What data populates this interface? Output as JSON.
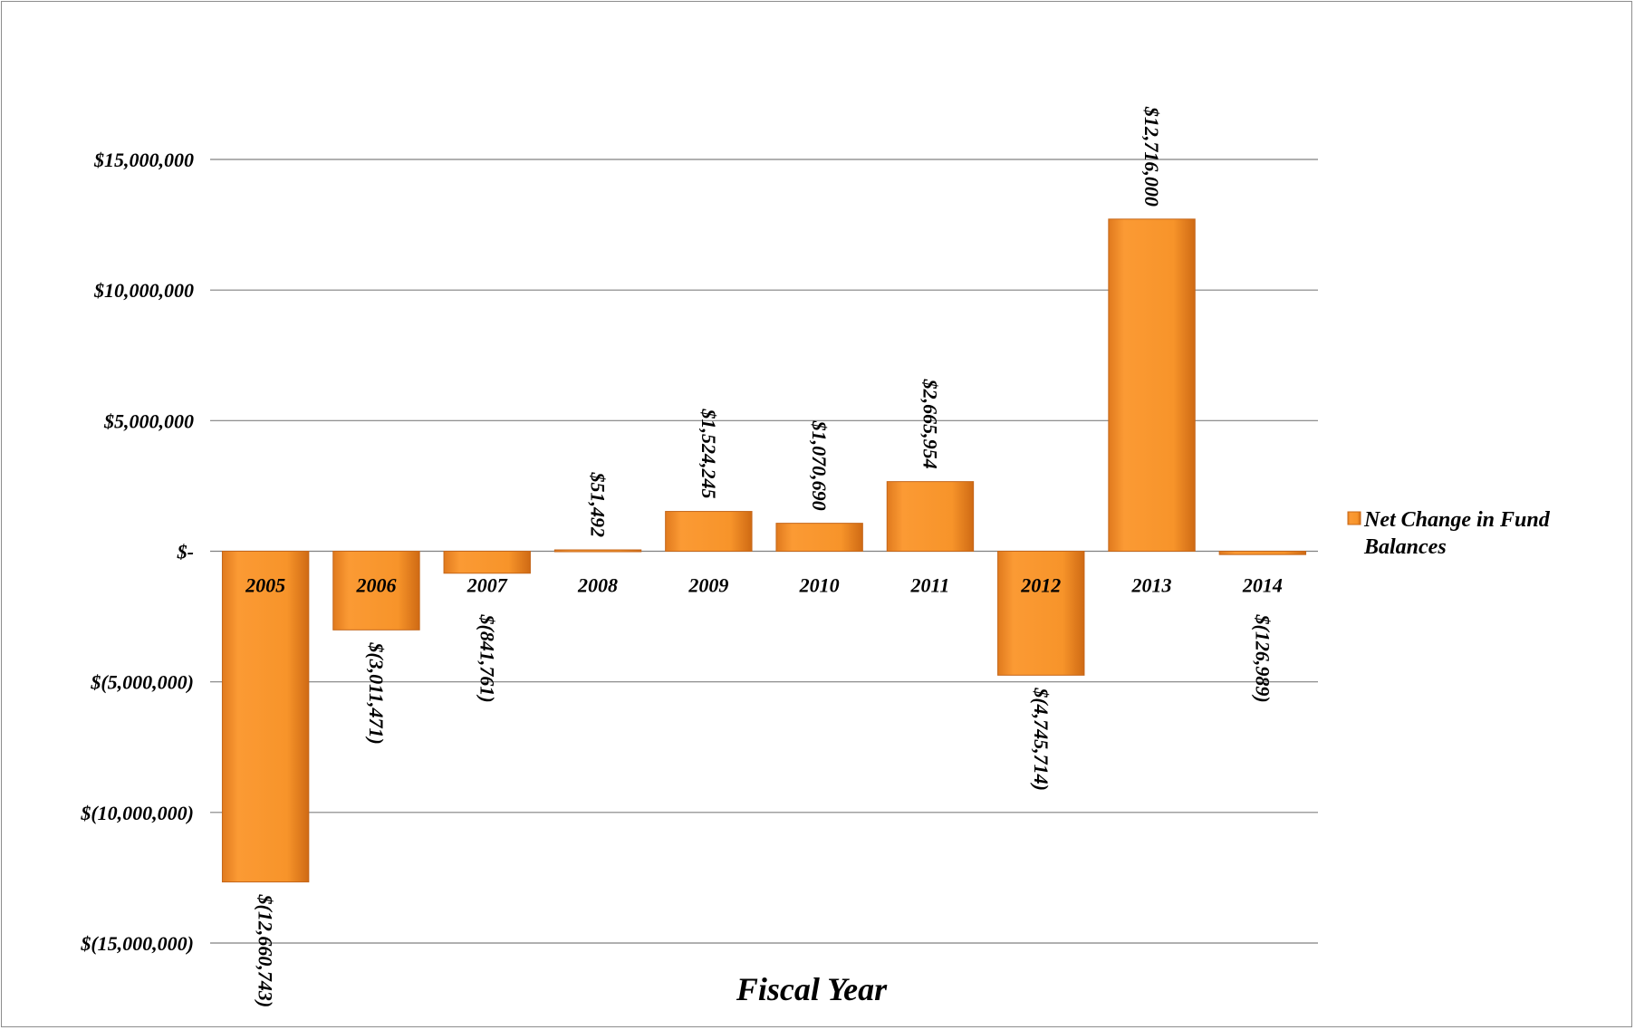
{
  "chart_data": {
    "type": "bar",
    "xlabel": "Fiscal Year",
    "ylabel": "",
    "categories": [
      "2005",
      "2006",
      "2007",
      "2008",
      "2009",
      "2010",
      "2011",
      "2012",
      "2013",
      "2014"
    ],
    "series": [
      {
        "name": "Net Change in Fund Balances",
        "values": [
          -12660743,
          -3011471,
          -841761,
          51492,
          1524245,
          1070690,
          2665954,
          -4745714,
          12716000,
          -126989
        ],
        "labels": [
          "$(12,660,743)",
          "$(3,011,471)",
          "$(841,761)",
          "$51,492",
          "$1,524,245",
          "$1,070,690",
          "$2,665,954",
          "$(4,745,714)",
          "$12,716,000",
          "$(126,989)"
        ]
      }
    ],
    "ylim": [
      -15000000,
      15000000
    ],
    "yticks": [
      15000000,
      10000000,
      5000000,
      0,
      -5000000,
      -10000000,
      -15000000
    ],
    "ytick_labels": [
      "$15,000,000",
      "$10,000,000",
      "$5,000,000",
      "$-",
      "$(5,000,000)",
      "$(10,000,000)",
      "$(15,000,000)"
    ],
    "grid": true,
    "legend": "right",
    "colors": {
      "bar": "#F7942A",
      "bar_dark": "#D9731A",
      "gridline": "#808080"
    }
  }
}
